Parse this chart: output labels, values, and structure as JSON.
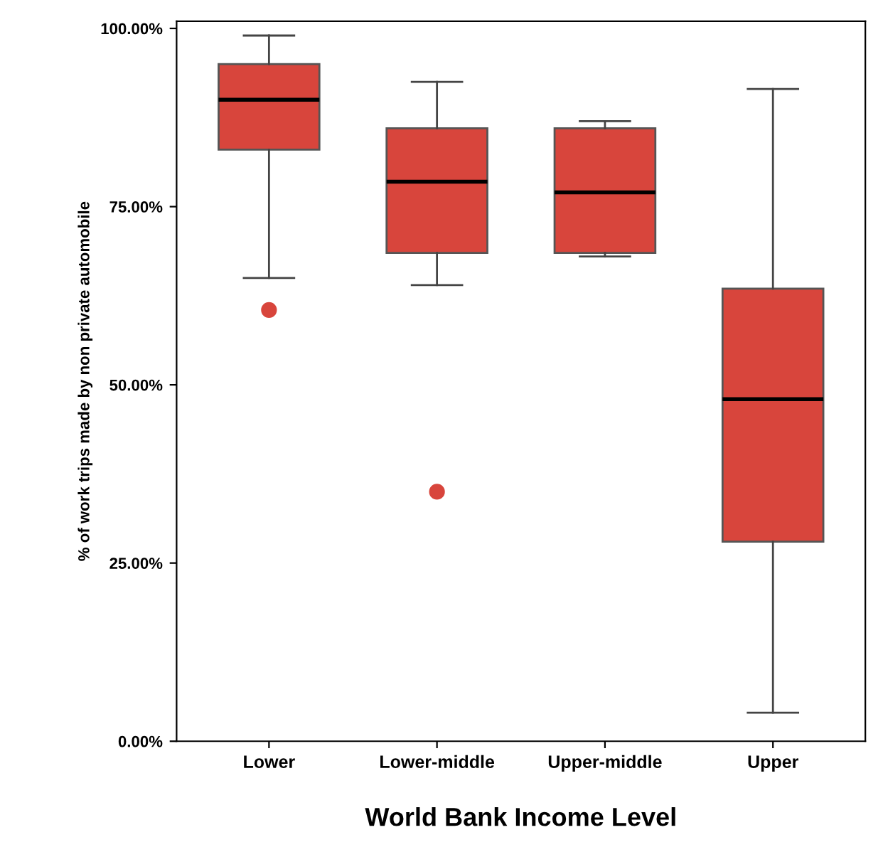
{
  "chart_data": {
    "type": "box",
    "xlabel": "World Bank Income Level",
    "ylabel": "% of work trips made by non private automobile",
    "categories": [
      "Lower",
      "Lower-middle",
      "Upper-middle",
      "Upper"
    ],
    "boxes": [
      {
        "low": 65,
        "q1": 83,
        "median": 90,
        "q3": 95,
        "high": 99,
        "outliers": [
          60.5
        ]
      },
      {
        "low": 64,
        "q1": 68.5,
        "median": 78.5,
        "q3": 86,
        "high": 92.5,
        "outliers": [
          35
        ]
      },
      {
        "low": 68,
        "q1": 68.5,
        "median": 77,
        "q3": 86,
        "high": 87
      },
      {
        "low": 4,
        "q1": 28,
        "median": 48,
        "q3": 63.5,
        "high": 91.5
      }
    ],
    "color": "#d8453c",
    "ylim": [
      0,
      101
    ],
    "yticks": [
      {
        "value": 0,
        "label": "0.00%"
      },
      {
        "value": 25,
        "label": "25.00%"
      },
      {
        "value": 50,
        "label": "50.00%"
      },
      {
        "value": 75,
        "label": "75.00%"
      },
      {
        "value": 100,
        "label": "100.00%"
      }
    ],
    "grid": false
  }
}
